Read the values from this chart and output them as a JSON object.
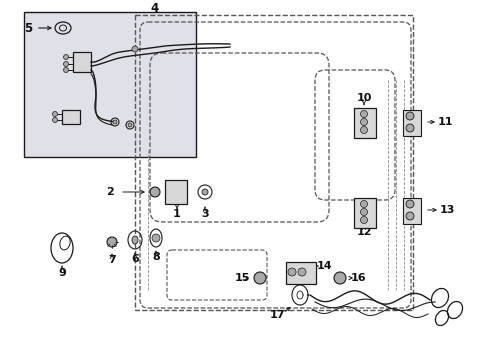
{
  "bg_color": "#ffffff",
  "figsize": [
    4.89,
    3.6
  ],
  "dpi": 100,
  "line_color": "#1a1a1a",
  "label_color": "#111111",
  "label_fontsize": 7.5,
  "part_label_fontsize": 8.5,
  "light_gray": "#d8d8d8",
  "mid_gray": "#aaaaaa",
  "dark_gray": "#555555"
}
